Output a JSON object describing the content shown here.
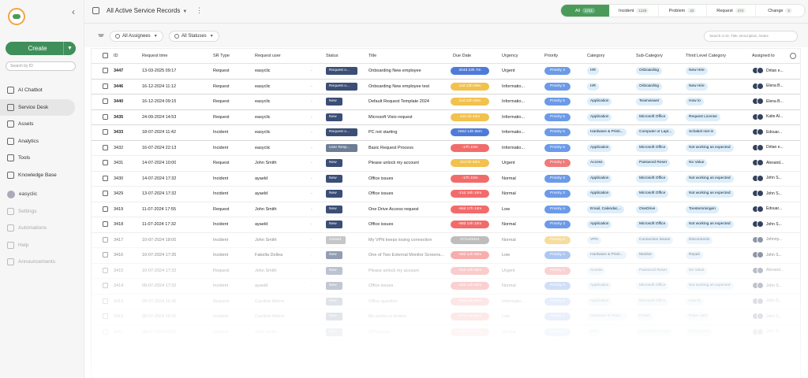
{
  "app": {
    "title": "All Active Service Records"
  },
  "sidebar": {
    "create_label": "Create",
    "search_placeholder": "Search by ID",
    "items": [
      {
        "label": "AI Chatbot",
        "icon": "chatbot-icon"
      },
      {
        "label": "Service Desk",
        "icon": "service-desk-icon"
      },
      {
        "label": "Assets",
        "icon": "assets-icon"
      },
      {
        "label": "Analytics",
        "icon": "analytics-icon"
      },
      {
        "label": "Tools",
        "icon": "tools-icon"
      },
      {
        "label": "Knowledge Base",
        "icon": "knowledge-base-icon"
      }
    ],
    "user": "easyclic",
    "bottom": [
      {
        "label": "Settings",
        "icon": "settings-icon"
      },
      {
        "label": "Automations",
        "icon": "automations-icon"
      },
      {
        "label": "Help",
        "icon": "help-icon"
      },
      {
        "label": "Announcements",
        "icon": "announcements-icon"
      }
    ]
  },
  "tabs": [
    {
      "label": "All",
      "count": "1741",
      "active": true
    },
    {
      "label": "Incident",
      "count": "1229"
    },
    {
      "label": "Problem",
      "count": "33"
    },
    {
      "label": "Request",
      "count": "474"
    },
    {
      "label": "Change",
      "count": "5"
    }
  ],
  "filters": {
    "assignees": "All Assignees",
    "statuses": "All Statuses",
    "search_placeholder": "Search in ID, Title, Description, Notes"
  },
  "columns": [
    "ID",
    "Request time",
    "SR Type",
    "Request user",
    "Status",
    "Title",
    "Due Date",
    "Urgency",
    "Priority",
    "Category",
    "Sub-Category",
    "Third Level Category",
    "Assigned to"
  ],
  "colors": {
    "accent": "#4a9b5a",
    "status_dark": "#3b4e75"
  },
  "rows": [
    {
      "id": "3447",
      "time": "13-03-2025 09:17",
      "type": "Request",
      "user": "easyclic",
      "status": "Request o...",
      "title": "Onboarding New employee",
      "due": "204d 23h 7m",
      "due_color": "#4f7bd8",
      "urg": "Urgent",
      "pri": "Priority 3",
      "pri_color": "#6b9ae8",
      "cat": "HR",
      "sub": "Onboarding",
      "third": "New Hire",
      "assignee": "Dritan e..."
    },
    {
      "id": "3446",
      "time": "16-12-2024 11:12",
      "type": "Request",
      "user": "easyclic",
      "status": "Request o...",
      "title": "Onboarding New employee test",
      "due": "13d 13h 58m",
      "due_color": "#f2c14e",
      "urg": "Informatio...",
      "pri": "Priority 5",
      "pri_color": "#6b9ae8",
      "cat": "HR",
      "sub": "Onboarding",
      "third": "New Hire",
      "assignee": "Elena B..."
    },
    {
      "id": "3440",
      "time": "16-12-2024 09:15",
      "type": "Request",
      "user": "easyclic",
      "status": "New",
      "title": "Default Request Template 2024",
      "due": "22d 23h 56m",
      "due_color": "#f2c14e",
      "urg": "Informatio...",
      "pri": "Priority 5",
      "pri_color": "#6b9ae8",
      "cat": "Application",
      "sub": "Teamviewer",
      "third": "How to",
      "assignee": "Elena B..."
    },
    {
      "id": "3435",
      "time": "24-09-2024 14:53",
      "type": "Request",
      "user": "easyclic",
      "status": "New",
      "title": "Microsoft Visio request",
      "due": "42d 4h 43m",
      "due_color": "#f2c14e",
      "urg": "Informatio...",
      "pri": "Priority 5",
      "pri_color": "#6b9ae8",
      "cat": "Application",
      "sub": "Microsoft Office",
      "third": "Request License",
      "assignee": "Katie Al..."
    },
    {
      "id": "3433",
      "time": "18-07-2024 11:42",
      "type": "Incident",
      "user": "easyclic",
      "status": "Request o...",
      "title": "PC not starting",
      "due": "292d 13h 58m",
      "due_color": "#4f7bd8",
      "urg": "Informatio...",
      "pri": "Priority 5",
      "pri_color": "#6b9ae8",
      "cat": "Hardware & Printi...",
      "sub": "Computer or Lapt...",
      "third": "Schakel niet in",
      "assignee": "Edouar..."
    },
    {
      "id": "3432",
      "time": "16-07-2024 22:13",
      "type": "Incident",
      "user": "easyclic",
      "status": "User Resp...",
      "title": "Basic Request Process",
      "due": "-17h 10m",
      "due_color": "#f26b6b",
      "urg": "Informatio...",
      "pri": "Priority 5",
      "pri_color": "#6b9ae8",
      "cat": "Application",
      "sub": "Microsoft Office",
      "third": "Not working as expected",
      "assignee": "Dritan e..."
    },
    {
      "id": "3431",
      "time": "14-07-2024 10:00",
      "type": "Request",
      "user": "John Smith",
      "status": "New",
      "title": "Please unlock my account",
      "due": "21d 6h 50m",
      "due_color": "#f2c14e",
      "urg": "Urgent",
      "pri": "Priority 1",
      "pri_color": "#f07a7a",
      "cat": "Access",
      "sub": "Password Reset",
      "third": "No Value",
      "assignee": "Alexand..."
    },
    {
      "id": "3430",
      "time": "14-07-2024 17:32",
      "type": "Incident",
      "user": "ayaeld",
      "status": "New",
      "title": "Office issues",
      "due": "-17h 10m",
      "due_color": "#f26b6b",
      "urg": "Normal",
      "pri": "Priority 3",
      "pri_color": "#6b9ae8",
      "cat": "Application",
      "sub": "Microsoft Office",
      "third": "Not working as expected",
      "assignee": "John S..."
    },
    {
      "id": "3429",
      "time": "13-07-2024 17:32",
      "type": "Incident",
      "user": "ayaeld",
      "status": "New",
      "title": "Office issues",
      "due": "-21d 18h 10m",
      "due_color": "#f26b6b",
      "urg": "Normal",
      "pri": "Priority 3",
      "pri_color": "#6b9ae8",
      "cat": "Application",
      "sub": "Microsoft Office",
      "third": "Not working as expected",
      "assignee": "John S..."
    },
    {
      "id": "3419",
      "time": "11-07-2024 17:55",
      "type": "Request",
      "user": "John Smith",
      "status": "New",
      "title": "One Drive Access request",
      "due": "-86d 17h 13m",
      "due_color": "#f26b6b",
      "urg": "Low",
      "pri": "Priority 4",
      "pri_color": "#6b9ae8",
      "cat": "Email, Calendar,...",
      "sub": "OneDrive",
      "third": "Toestemmingen",
      "assignee": "Edouar..."
    },
    {
      "id": "3418",
      "time": "11-07-2024 17:32",
      "type": "Incident",
      "user": "ayaeld",
      "status": "New",
      "title": "Office issues",
      "due": "-88d 14h 10m",
      "due_color": "#f26b6b",
      "urg": "Normal",
      "pri": "Priority 3",
      "pri_color": "#6b9ae8",
      "cat": "Application",
      "sub": "Microsoft Office",
      "third": "Not working as expected",
      "assignee": "John S..."
    },
    {
      "id": "3417",
      "time": "10-07-2024 18:00",
      "type": "Incident",
      "user": "John Smith",
      "status": "Closed",
      "title": "My VPN keeps losing connection",
      "due": "07/12/2024",
      "due_color": "#888888",
      "urg": "Normal",
      "pri": "Priority 2",
      "pri_color": "#f2c14e",
      "cat": "VPN",
      "sub": "Connection issues",
      "third": "Disconnects",
      "assignee": "Johnny..."
    },
    {
      "id": "3416",
      "time": "10-07-2024 17:35",
      "type": "Incident",
      "user": "Fabella Dollea",
      "status": "New",
      "title": "One of Two External Monitor Screens...",
      "due": "-89d 14h 56m",
      "due_color": "#f26b6b",
      "urg": "Low",
      "pri": "Priority 4",
      "pri_color": "#6b9ae8",
      "cat": "Hardware & Printi...",
      "sub": "Monitor",
      "third": "Repair",
      "assignee": "John S..."
    },
    {
      "id": "3415",
      "time": "10-07-2024 17:32",
      "type": "Request",
      "user": "John Smith",
      "status": "New",
      "title": "Please unlock my account",
      "due": "-91d 14h 56m",
      "due_color": "#f26b6b",
      "urg": "Urgent",
      "pri": "Priority 1",
      "pri_color": "#f07a7a",
      "cat": "Access",
      "sub": "Password Reset",
      "third": "No Value",
      "assignee": "Alexand..."
    },
    {
      "id": "3414",
      "time": "09-07-2024 17:32",
      "type": "Incident",
      "user": "ayaeld",
      "status": "New",
      "title": "Office issues",
      "due": "-92d 14h 56m",
      "due_color": "#f26b6b",
      "urg": "Normal",
      "pri": "Priority 3",
      "pri_color": "#6b9ae8",
      "cat": "Application",
      "sub": "Microsoft Office",
      "third": "Not working as expected",
      "assignee": "John S..."
    },
    {
      "id": "3413",
      "time": "09-07-2024 16:40",
      "type": "Request",
      "user": "Caroline Ahlers",
      "status": "New",
      "title": "Office question",
      "due": "-95d 14h 56m",
      "due_color": "#f26b6b",
      "urg": "Informatio...",
      "pri": "Priority 5",
      "pri_color": "#6b9ae8",
      "cat": "Application",
      "sub": "Microsoft Office",
      "third": "How to",
      "assignee": "John S..."
    },
    {
      "id": "3412",
      "time": "09-07-2024 16:20",
      "type": "Incident",
      "user": "Caroline Ahlers",
      "status": "New",
      "title": "My printer is broken",
      "due": "-97d 14h 56m",
      "due_color": "#f26b6b",
      "urg": "Low",
      "pri": "Priority 4",
      "pri_color": "#6b9ae8",
      "cat": "Hardware & Printi...",
      "sub": "Printer",
      "third": "Paper Jam",
      "assignee": "John S..."
    },
    {
      "id": "3411",
      "time": "08-07-2024 12:05",
      "type": "Incident",
      "user": "John Smith",
      "status": "New",
      "title": "VPN issues",
      "due": "-98d 14h 56m",
      "due_color": "#f26b6b",
      "urg": "Normal",
      "pri": "Priority 3",
      "pri_color": "#6b9ae8",
      "cat": "VPN",
      "sub": "Connection issues",
      "third": "Disconnects",
      "assignee": "John S..."
    }
  ]
}
